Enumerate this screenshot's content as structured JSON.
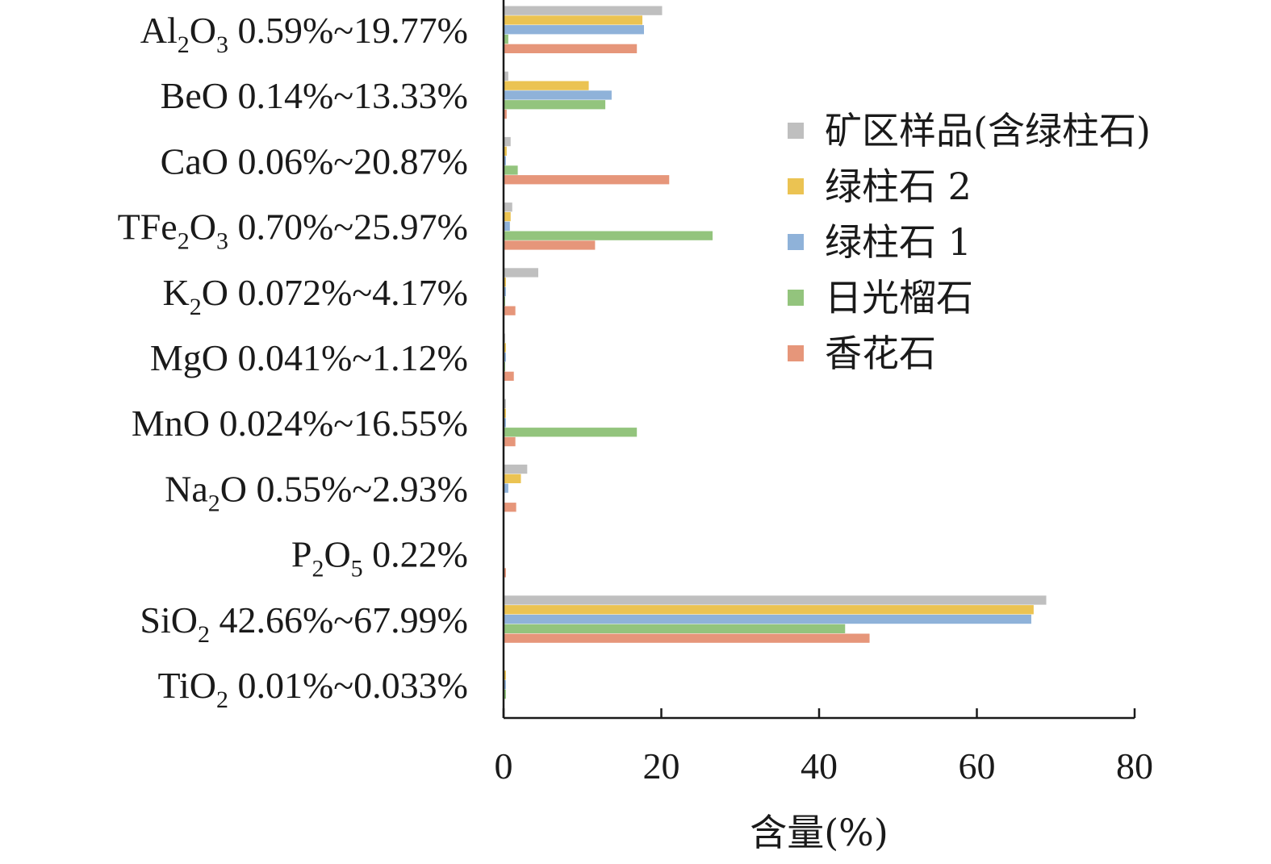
{
  "chart_data": {
    "type": "bar",
    "orientation": "horizontal",
    "categories": [
      {
        "parts": [
          [
            "Al",
            0
          ],
          [
            "2",
            1
          ],
          [
            "O",
            0
          ],
          [
            "3",
            1
          ],
          [
            " 0.59%~19.77%",
            0
          ]
        ]
      },
      {
        "parts": [
          [
            "BeO 0.14%~13.33%",
            0
          ]
        ]
      },
      {
        "parts": [
          [
            "CaO 0.06%~20.87%",
            0
          ]
        ]
      },
      {
        "parts": [
          [
            "TFe",
            0
          ],
          [
            "2",
            1
          ],
          [
            "O",
            0
          ],
          [
            "3",
            1
          ],
          [
            " 0.70%~25.97%",
            0
          ]
        ]
      },
      {
        "parts": [
          [
            "K",
            0
          ],
          [
            "2",
            1
          ],
          [
            "O 0.072%~4.17%",
            0
          ]
        ]
      },
      {
        "parts": [
          [
            "MgO 0.041%~1.12%",
            0
          ]
        ]
      },
      {
        "parts": [
          [
            "MnO 0.024%~16.55%",
            0
          ]
        ]
      },
      {
        "parts": [
          [
            "Na",
            0
          ],
          [
            "2",
            1
          ],
          [
            "O 0.55%~2.93%",
            0
          ]
        ]
      },
      {
        "parts": [
          [
            "P",
            0
          ],
          [
            "2",
            1
          ],
          [
            "O",
            0
          ],
          [
            "5",
            1
          ],
          [
            " 0.22%",
            0
          ]
        ]
      },
      {
        "parts": [
          [
            "SiO",
            0
          ],
          [
            "2",
            1
          ],
          [
            " 42.66%~67.99%",
            0
          ]
        ]
      },
      {
        "parts": [
          [
            "TiO",
            0
          ],
          [
            "2",
            1
          ],
          [
            " 0.01%~0.033%",
            0
          ]
        ]
      }
    ],
    "series": [
      {
        "name": "矿区样品(含绿柱石)",
        "color": "#BFBFBF",
        "values": [
          20.1,
          0.6,
          0.9,
          1.1,
          4.4,
          0.2,
          0.3,
          3.0,
          0.0,
          68.8,
          0.1
        ]
      },
      {
        "name": "绿柱石 2",
        "color": "#EBC352",
        "values": [
          17.6,
          10.8,
          0.4,
          0.9,
          0.3,
          0.3,
          0.3,
          2.2,
          0.0,
          67.2,
          0.3
        ]
      },
      {
        "name": "绿柱石 1",
        "color": "#8FB2D9",
        "values": [
          17.8,
          13.7,
          0.3,
          0.8,
          0.3,
          0.3,
          0.3,
          0.6,
          0.0,
          66.9,
          0.3
        ]
      },
      {
        "name": "日光榴石",
        "color": "#93C47D",
        "values": [
          0.6,
          12.9,
          1.8,
          26.5,
          0.2,
          0.2,
          16.9,
          0.1,
          0.0,
          43.3,
          0.3
        ]
      },
      {
        "name": "香花石",
        "color": "#E6967A",
        "values": [
          16.9,
          0.4,
          21.0,
          11.6,
          1.5,
          1.3,
          1.5,
          1.6,
          0.3,
          46.4,
          0.0
        ]
      }
    ],
    "xlabel": "含量(%)",
    "ylabel": "",
    "xlim": [
      0,
      80
    ],
    "xticks": [
      0,
      20,
      40,
      60,
      80
    ],
    "xtick_labels": [
      "0",
      "20",
      "40",
      "60",
      "80"
    ],
    "grid": false,
    "legend_position": "right"
  }
}
